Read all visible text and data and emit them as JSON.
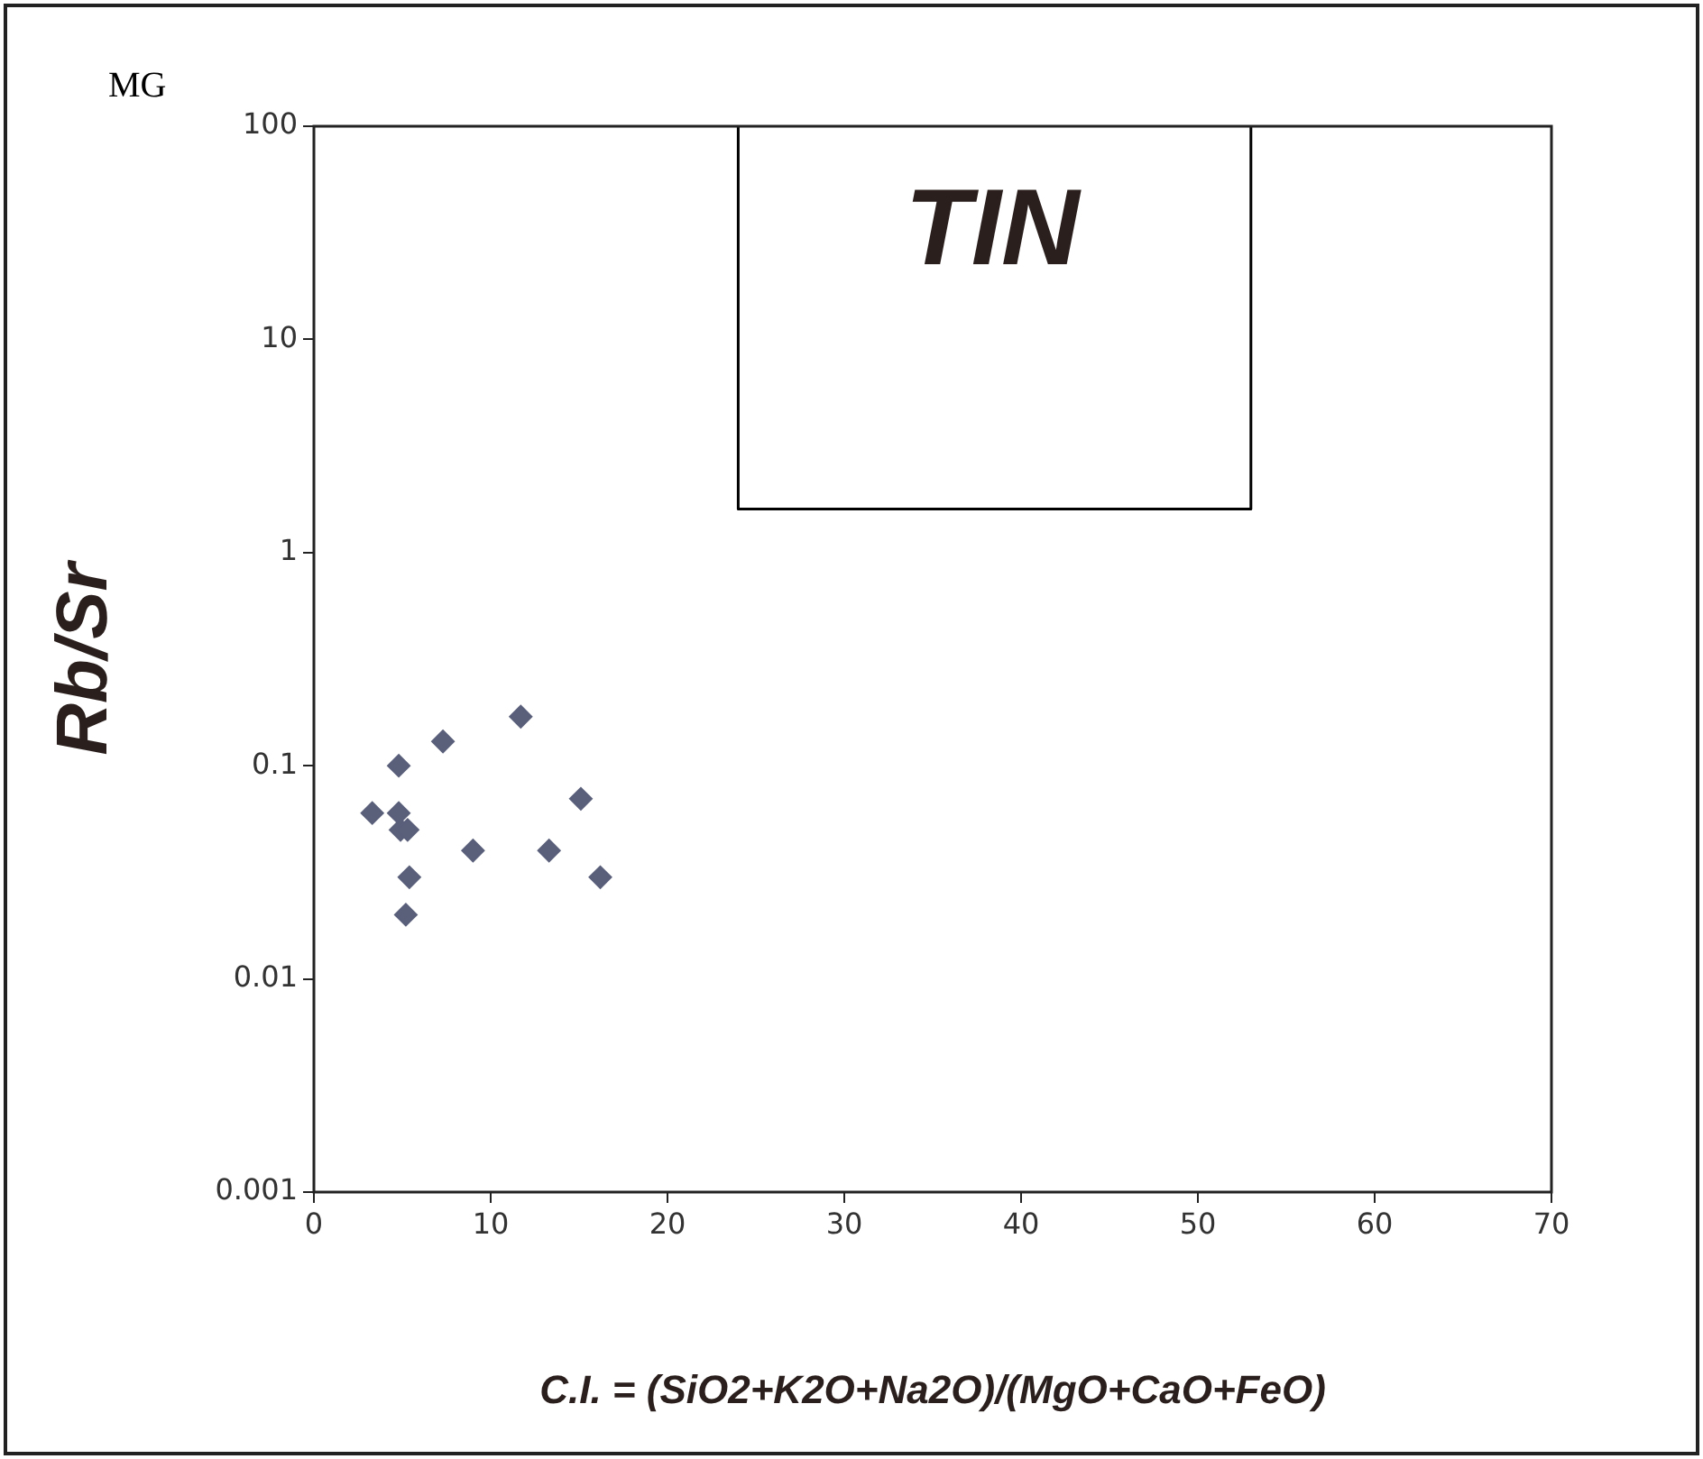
{
  "chart_data": {
    "type": "scatter",
    "xlabel": "C.I. = (SiO2+K2O+Na2O)/(MgO+CaO+FeO)",
    "ylabel": "Rb/Sr",
    "log": "y",
    "grid": false,
    "legend": false,
    "marker": "diamond",
    "xlim": [
      0,
      70
    ],
    "xticks": [
      0,
      10,
      20,
      30,
      40,
      50,
      60,
      70
    ],
    "ylim": [
      0.001,
      100
    ],
    "yticks": [
      0.001,
      0.01,
      0.1,
      1,
      10,
      100
    ],
    "annotations": [
      "MG",
      "TIN"
    ],
    "series": [
      {
        "color": "#5a5f7a",
        "x": [
          11.7,
          7.3,
          4.8,
          3.3,
          4.8,
          4.9,
          5.3,
          15.1,
          9.0,
          13.3,
          5.4,
          16.2,
          5.2
        ],
        "values": [
          0.17,
          0.13,
          0.1,
          0.06,
          0.06,
          0.05,
          0.05,
          0.07,
          0.04,
          0.04,
          0.03,
          0.03,
          0.02
        ]
      },
      {
        "type": "line",
        "color": "#000000",
        "marker": "none",
        "x": [
          24,
          24,
          53,
          53
        ],
        "values": [
          100,
          1.6,
          1.6,
          100
        ]
      }
    ]
  }
}
